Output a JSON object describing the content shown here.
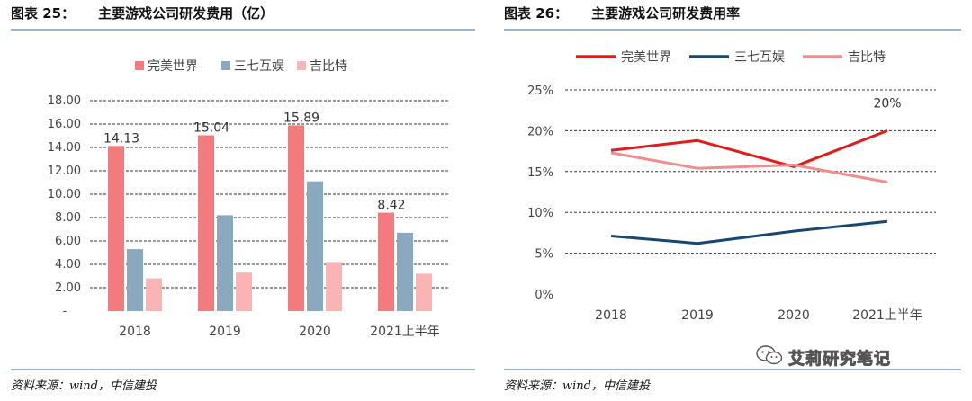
{
  "left": {
    "figure_label": "图表 25：",
    "title": "主要游戏公司研发费用（亿）",
    "source": "资料来源：wind，中信建投"
  },
  "right": {
    "figure_label": "图表 26：",
    "title": "主要游戏公司研发费用率",
    "source": "资料来源：wind，中信建投"
  },
  "watermark": {
    "text": "艾莉研究笔记",
    "icon": "wechat-icon"
  },
  "colors": {
    "wanmei": "#f47b7d",
    "sanqi": "#8aa9bf",
    "jibite": "#f9b4b3",
    "line_wanmei": "#e31b1b",
    "line_sanqi": "#17486f",
    "line_jibite": "#f08d8f"
  },
  "chart_data": [
    {
      "type": "bar",
      "categories": [
        "2018",
        "2019",
        "2020",
        "2021上半年"
      ],
      "series": [
        {
          "name": "完美世界",
          "values": [
            14.13,
            15.04,
            15.89,
            8.42
          ],
          "data_labels": [
            "14.13",
            "15.04",
            "15.89",
            "8.42"
          ]
        },
        {
          "name": "三七互娱",
          "values": [
            5.3,
            8.2,
            11.1,
            6.7
          ]
        },
        {
          "name": "吉比特",
          "values": [
            2.8,
            3.3,
            4.2,
            3.2
          ]
        }
      ],
      "ylim": [
        0,
        18
      ],
      "yticks": [
        "-",
        "2.00",
        "4.00",
        "6.00",
        "8.00",
        "10.00",
        "12.00",
        "14.00",
        "16.00",
        "18.00"
      ],
      "grid": true,
      "legend": "top"
    },
    {
      "type": "line",
      "categories": [
        "2018",
        "2019",
        "2020",
        "2021上半年"
      ],
      "series": [
        {
          "name": "完美世界",
          "values": [
            17.6,
            18.8,
            15.6,
            20.0
          ]
        },
        {
          "name": "三七互娱",
          "values": [
            7.1,
            6.2,
            7.7,
            8.9
          ]
        },
        {
          "name": "吉比特",
          "values": [
            17.3,
            15.4,
            15.8,
            13.7
          ]
        }
      ],
      "annotations": [
        {
          "text": "20%",
          "category": "2021上半年",
          "series": "完美世界"
        }
      ],
      "ylim": [
        0,
        25
      ],
      "yticks": [
        "0%",
        "5%",
        "10%",
        "15%",
        "20%",
        "25%"
      ],
      "grid": true,
      "legend": "top"
    }
  ]
}
